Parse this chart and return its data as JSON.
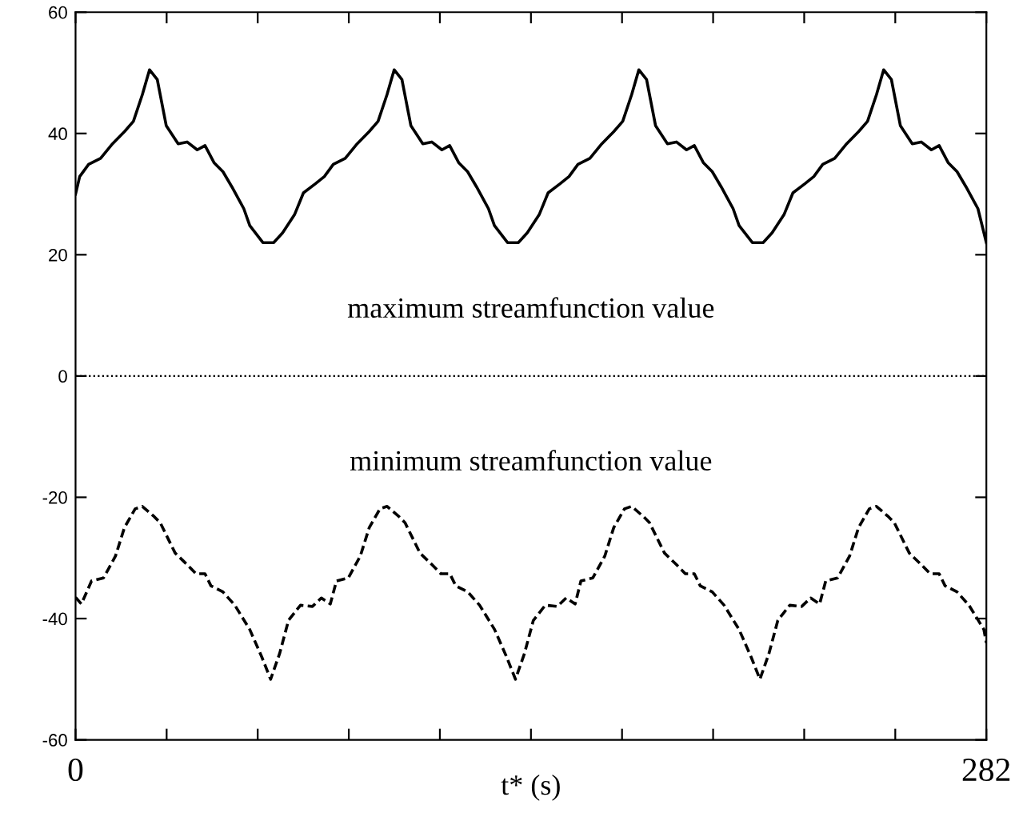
{
  "chart_data": {
    "type": "line",
    "xlabel": "t* (s)",
    "xlim": [
      0,
      282
    ],
    "ylim": [
      -60,
      60
    ],
    "xticks": [
      0,
      {
        "value": 28.2,
        "label": null
      },
      {
        "value": 56.4,
        "label": null
      },
      {
        "value": 84.6,
        "label": null
      },
      {
        "value": 112.8,
        "label": null
      },
      {
        "value": 141,
        "label": null
      },
      {
        "value": 169.2,
        "label": null
      },
      {
        "value": 197.4,
        "label": null
      },
      {
        "value": 225.6,
        "label": null
      },
      {
        "value": 253.8,
        "label": null
      },
      282
    ],
    "yticks": [
      -60,
      -40,
      -20,
      0,
      20,
      40,
      60
    ],
    "grid": false,
    "legend": false,
    "marker": "none",
    "ref_lines": [
      {
        "axis": "y",
        "value": 0,
        "color": "#000000",
        "line_style": "dotted"
      }
    ],
    "series": [
      {
        "name": "maximum streamfunction value",
        "color": "#000000",
        "line_style": "solid",
        "x": [
          0,
          1.28,
          4.05,
          7.75,
          11.44,
          15.14,
          17.91,
          20.68,
          22.9,
          25.3,
          28.07,
          31.77,
          34.54,
          37.68,
          40.08,
          42.86,
          45.63,
          48.4,
          52.09,
          53.94,
          58.0,
          61.33,
          64.1,
          67.79,
          70.56,
          74.26,
          77.03,
          79.8,
          83.5,
          87.19,
          90.89,
          93.66,
          96.43,
          98.65,
          101.05,
          103.82,
          107.52,
          110.29,
          113.43,
          115.83,
          118.61,
          121.38,
          124.15,
          127.84,
          129.69,
          133.75,
          137.08,
          139.85,
          143.54,
          146.31,
          150.01,
          152.78,
          155.55,
          159.25,
          162.94,
          166.64,
          169.41,
          172.18,
          174.4,
          176.8,
          179.57,
          183.27,
          186.04,
          189.18,
          191.58,
          194.36,
          197.13,
          199.9,
          203.59,
          205.44,
          209.55,
          212.88,
          215.65,
          219.34,
          222.11,
          225.81,
          228.58,
          231.35,
          235.05,
          238.74,
          242.44,
          245.21,
          247.98,
          250.2,
          252.6,
          255.37,
          259.07,
          261.84,
          264.98,
          267.38,
          270.16,
          272.93,
          275.7,
          279.39,
          282
        ],
        "values": [
          30.0,
          32.9,
          34.9,
          35.9,
          38.3,
          40.3,
          42.0,
          46.4,
          50.5,
          48.9,
          41.3,
          38.3,
          38.6,
          37.3,
          38.0,
          35.2,
          33.7,
          31.2,
          27.6,
          24.8,
          22.0,
          22.0,
          23.6,
          26.6,
          30.2,
          31.7,
          32.9,
          34.9,
          35.9,
          38.3,
          40.3,
          42.0,
          46.4,
          50.5,
          48.9,
          41.3,
          38.3,
          38.6,
          37.3,
          38.0,
          35.2,
          33.7,
          31.2,
          27.6,
          24.8,
          22.0,
          22.0,
          23.6,
          26.6,
          30.2,
          31.7,
          32.9,
          34.9,
          35.9,
          38.3,
          40.3,
          42.0,
          46.4,
          50.5,
          48.9,
          41.3,
          38.3,
          38.6,
          37.3,
          38.0,
          35.2,
          33.7,
          31.2,
          27.6,
          24.8,
          22.0,
          22.0,
          23.6,
          26.6,
          30.2,
          31.7,
          32.9,
          34.9,
          35.9,
          38.3,
          40.3,
          42.0,
          46.4,
          50.5,
          48.9,
          41.3,
          38.3,
          38.6,
          37.3,
          38.0,
          35.2,
          33.7,
          31.2,
          27.6,
          22.0
        ]
      },
      {
        "name": "minimum streamfunction value",
        "color": "#000000",
        "line_style": "dashed",
        "x": [
          0,
          1.81,
          4.95,
          8.66,
          12.36,
          15.13,
          18.46,
          20.67,
          24.37,
          26.22,
          30.84,
          34.53,
          37.3,
          40.08,
          41.92,
          45.62,
          49.31,
          53.93,
          57.63,
          60.4,
          63.17,
          65.94,
          69.64,
          73.33,
          76.1,
          78.88,
          80.77,
          84.46,
          88.16,
          90.93,
          94.26,
          96.47,
          100.17,
          102.02,
          106.64,
          110.33,
          113.1,
          115.88,
          117.72,
          121.42,
          125.11,
          129.73,
          133.43,
          136.2,
          138.97,
          141.74,
          145.44,
          149.13,
          151.9,
          154.68,
          156.47,
          160.16,
          163.86,
          166.63,
          169.96,
          172.17,
          175.87,
          177.72,
          182.34,
          186.03,
          188.8,
          191.58,
          193.42,
          197.12,
          200.81,
          205.43,
          209.13,
          211.9,
          214.67,
          217.44,
          221.14,
          224.83,
          227.6,
          230.38,
          232.27,
          235.96,
          239.66,
          242.43,
          245.76,
          247.97,
          251.67,
          253.52,
          258.14,
          261.83,
          264.6,
          267.38,
          269.22,
          272.92,
          276.61,
          281.23,
          282
        ],
        "values": [
          -36.5,
          -37.6,
          -33.8,
          -33.3,
          -29.7,
          -25.0,
          -21.9,
          -21.5,
          -23.2,
          -24.2,
          -29.2,
          -31.1,
          -32.6,
          -32.6,
          -34.6,
          -35.6,
          -37.8,
          -41.8,
          -46.3,
          -50.0,
          -45.8,
          -40.3,
          -37.8,
          -38.0,
          -36.6,
          -37.6,
          -33.8,
          -33.3,
          -29.7,
          -25.0,
          -21.9,
          -21.5,
          -23.2,
          -24.2,
          -29.2,
          -31.1,
          -32.6,
          -32.6,
          -34.6,
          -35.6,
          -37.8,
          -41.8,
          -46.3,
          -50.0,
          -45.8,
          -40.3,
          -37.8,
          -38.0,
          -36.6,
          -37.6,
          -33.8,
          -33.3,
          -29.7,
          -25.0,
          -21.9,
          -21.5,
          -23.2,
          -24.2,
          -29.2,
          -31.1,
          -32.6,
          -32.6,
          -34.6,
          -35.6,
          -37.8,
          -41.8,
          -46.3,
          -50.0,
          -45.8,
          -40.3,
          -37.8,
          -38.0,
          -36.6,
          -37.6,
          -33.8,
          -33.3,
          -29.7,
          -25.0,
          -21.9,
          -21.5,
          -23.2,
          -24.2,
          -29.2,
          -31.1,
          -32.6,
          -32.6,
          -34.6,
          -35.6,
          -37.8,
          -41.8,
          -44.0
        ]
      }
    ]
  }
}
